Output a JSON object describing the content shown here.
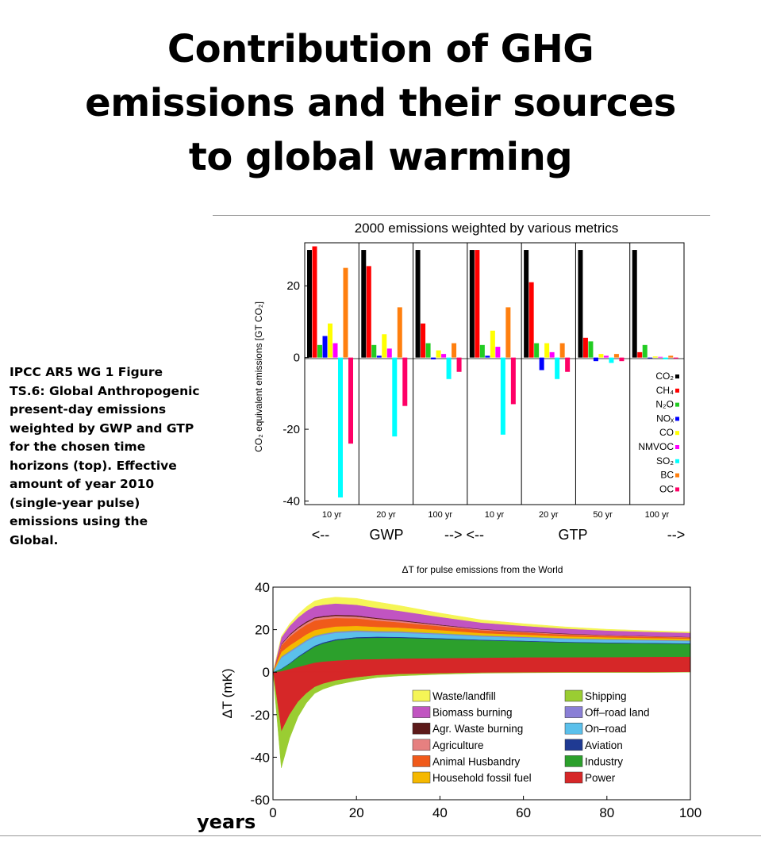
{
  "title": {
    "line1": "Contribution of GHG",
    "line2": "emissions and their sources",
    "line3": "to global warming"
  },
  "caption": "IPCC AR5 WG 1 Figure TS.6: Global Anthropogenic present-day emissions weighted by GWP and GTP for the chosen time horizons (top). Effective amount of year 2010 (single-year pulse) emissions using the Global.",
  "years_label": "years",
  "chart_data": [
    {
      "type": "bar",
      "title": "2000 emissions weighted by various metrics",
      "ylabel": "CO₂ equivalent emissions [GT CO₂]",
      "ylim": [
        -40,
        30
      ],
      "yticks": [
        20,
        0,
        -20,
        -40
      ],
      "grid": false,
      "legend_position": "right, inside last panel",
      "categories": [
        "10 yr",
        "20 yr",
        "100 yr",
        "10 yr",
        "20 yr",
        "50 yr",
        "100 yr"
      ],
      "metric_labels": [
        "<--",
        "GWP",
        "--> <--",
        "GTP",
        "-->"
      ],
      "series": [
        {
          "name": "CO₂",
          "color": "#000000",
          "values": [
            30,
            30,
            30,
            30,
            30,
            30,
            30
          ]
        },
        {
          "name": "CH₄",
          "color": "#ff0000",
          "values": [
            31,
            25.5,
            9.5,
            30,
            21,
            5.5,
            1.5
          ]
        },
        {
          "name": "N₂O",
          "color": "#22cc22",
          "values": [
            3.5,
            3.5,
            4,
            3.5,
            4,
            4.5,
            3.5
          ]
        },
        {
          "name": "NOₓ",
          "color": "#0000ff",
          "values": [
            6,
            0.5,
            -0.5,
            0.5,
            -3.5,
            -1,
            -0.2
          ]
        },
        {
          "name": "CO",
          "color": "#ffff00",
          "values": [
            9.5,
            6.5,
            2,
            7.5,
            4,
            1,
            0.3
          ]
        },
        {
          "name": "NMVOC",
          "color": "#ff00ff",
          "values": [
            4,
            2.5,
            1,
            3,
            1.5,
            0.5,
            0.2
          ]
        },
        {
          "name": "SO₂",
          "color": "#00ffff",
          "values": [
            -39,
            -22,
            -6,
            -21.5,
            -6,
            -1.5,
            -0.5
          ]
        },
        {
          "name": "BC",
          "color": "#ff7f0e",
          "values": [
            25,
            14,
            4,
            14,
            4,
            1,
            0.5
          ]
        },
        {
          "name": "OC",
          "color": "#ff0066",
          "values": [
            -24,
            -13.5,
            -4,
            -13,
            -4,
            -1,
            -0.3
          ]
        }
      ]
    },
    {
      "type": "area",
      "title": "ΔT for pulse emissions from the World",
      "xlabel": "years",
      "ylabel": "ΔT (mK)",
      "xlim": [
        0,
        100
      ],
      "ylim": [
        -60,
        40
      ],
      "xticks": [
        0,
        20,
        40,
        60,
        80,
        100
      ],
      "yticks": [
        40,
        20,
        0,
        -20,
        -40,
        -60
      ],
      "grid": false,
      "legend_position": "bottom-right",
      "x": [
        0,
        2,
        4,
        6,
        8,
        10,
        12,
        15,
        20,
        25,
        30,
        40,
        50,
        60,
        70,
        80,
        90,
        100
      ],
      "positive_series": [
        {
          "name": "Power",
          "color": "#d62728",
          "values": [
            0,
            0.5,
            1.5,
            2.5,
            3.5,
            4.5,
            5,
            5.5,
            6,
            6.2,
            6.4,
            6.6,
            6.8,
            7,
            7,
            7.1,
            7.2,
            7.3
          ]
        },
        {
          "name": "Industry",
          "color": "#2ca02c",
          "values": [
            0,
            1,
            2.5,
            4.5,
            6,
            7.5,
            8.5,
            9.5,
            10,
            10,
            9.8,
            9,
            8.2,
            7.5,
            7,
            6.6,
            6.3,
            6
          ]
        },
        {
          "name": "Aviation",
          "color": "#1f3a93",
          "values": [
            0,
            0.2,
            0.3,
            0.4,
            0.5,
            0.5,
            0.5,
            0.5,
            0.5,
            0.5,
            0.4,
            0.4,
            0.3,
            0.3,
            0.3,
            0.3,
            0.3,
            0.3
          ]
        },
        {
          "name": "On–road",
          "color": "#5bc0eb",
          "values": [
            0,
            5,
            5,
            4.5,
            4.5,
            4,
            3.5,
            3,
            2.5,
            2,
            2,
            1.8,
            1.5,
            1.4,
            1.3,
            1.2,
            1.1,
            1
          ]
        },
        {
          "name": "Off–road land",
          "color": "#8a7fd6",
          "values": [
            0,
            0.5,
            0.5,
            0.5,
            0.5,
            0.5,
            0.5,
            0.5,
            0.5,
            0.5,
            0.5,
            0.4,
            0.4,
            0.4,
            0.3,
            0.3,
            0.3,
            0.3
          ]
        },
        {
          "name": "Shipping",
          "color": "#9acd32",
          "values": [
            0,
            0.3,
            0.3,
            0.3,
            0.3,
            0.3,
            0.3,
            0.3,
            0.3,
            0.3,
            0.3,
            0.3,
            0.2,
            0.2,
            0.2,
            0.2,
            0.2,
            0.2
          ]
        },
        {
          "name": "Household fossil fuel",
          "color": "#f5b800",
          "values": [
            0,
            2,
            2.5,
            2.5,
            2.5,
            2.5,
            2.3,
            2.2,
            2,
            1.8,
            1.6,
            1.3,
            1,
            0.9,
            0.8,
            0.7,
            0.7,
            0.7
          ]
        },
        {
          "name": "Animal Husbandry",
          "color": "#f05a1a",
          "values": [
            0,
            3,
            4,
            4.5,
            4.5,
            4.5,
            4.3,
            4,
            3.5,
            3,
            2.5,
            1.8,
            1.3,
            1,
            0.8,
            0.7,
            0.6,
            0.5
          ]
        },
        {
          "name": "Agriculture",
          "color": "#e68080",
          "values": [
            0,
            0.5,
            0.8,
            1,
            1,
            1,
            1,
            1,
            0.9,
            0.8,
            0.7,
            0.5,
            0.4,
            0.3,
            0.3,
            0.3,
            0.2,
            0.2
          ]
        },
        {
          "name": "Agr. Waste burning",
          "color": "#5c1a1a",
          "values": [
            0,
            0.3,
            0.4,
            0.5,
            0.5,
            0.5,
            0.5,
            0.5,
            0.5,
            0.4,
            0.4,
            0.3,
            0.2,
            0.2,
            0.2,
            0.1,
            0.1,
            0.1
          ]
        },
        {
          "name": "Biomass burning",
          "color": "#c154c1",
          "values": [
            0,
            3,
            4,
            4.5,
            5,
            5.2,
            5.3,
            5.3,
            5,
            4.7,
            4.3,
            3.6,
            3,
            2.6,
            2.3,
            2.1,
            2,
            1.9
          ]
        },
        {
          "name": "Waste/landfill",
          "color": "#f5f556",
          "values": [
            0,
            0.5,
            1,
            1.5,
            2,
            2.5,
            2.8,
            3,
            3,
            2.8,
            2.5,
            1.8,
            1.3,
            1,
            0.8,
            0.6,
            0.5,
            0.4
          ]
        }
      ],
      "negative_series": [
        {
          "name": "Power",
          "color": "#d62728",
          "values": [
            0,
            -28,
            -20,
            -14,
            -10,
            -7,
            -5.5,
            -4,
            -2.5,
            -1.5,
            -1,
            -0.6,
            -0.3,
            -0.2,
            -0.1,
            -0.1,
            -0.1,
            0
          ]
        },
        {
          "name": "Shipping",
          "color": "#9acd32",
          "values": [
            0,
            -17,
            -11,
            -7,
            -4.5,
            -3,
            -2.5,
            -2,
            -1.5,
            -1,
            -0.8,
            -0.4,
            -0.2,
            -0.1,
            -0.1,
            0,
            0,
            0
          ]
        }
      ]
    }
  ]
}
